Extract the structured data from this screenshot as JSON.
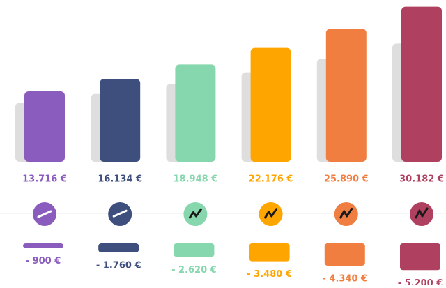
{
  "chart_data": {
    "type": "bar",
    "values": [
      13716,
      16134,
      18948,
      22176,
      25890,
      30182
    ],
    "value_labels": [
      "13.716 €",
      "16.134 €",
      "18.948 €",
      "22.176 €",
      "25.890 €",
      "30.182 €"
    ],
    "colors": [
      "#8a5cbd",
      "#3f4f7d",
      "#86d6ae",
      "#ffa500",
      "#f07e40",
      "#b0405f"
    ],
    "deductions": {
      "values": [
        -900,
        -1760,
        -2620,
        -3480,
        -4340,
        -5200
      ],
      "value_labels": [
        "- 900 €",
        "- 1.760 €",
        "- 2.620 €",
        "- 3.480 €",
        "- 4.340 €",
        "- 5.200 €"
      ]
    },
    "ylim": [
      0,
      30000
    ]
  }
}
